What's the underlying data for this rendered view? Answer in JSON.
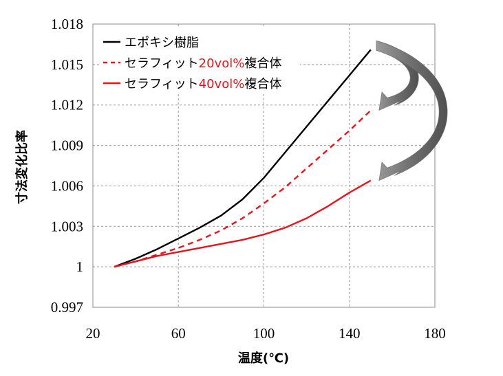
{
  "chart_data": {
    "type": "line",
    "xlabel": "温度(℃)",
    "ylabel": "寸法変化比率",
    "xlim": [
      20,
      180
    ],
    "ylim": [
      0.997,
      1.018
    ],
    "x_ticks": [
      20,
      60,
      100,
      140,
      180
    ],
    "x_tick_labels": [
      "20",
      "60",
      "100",
      "140",
      "180"
    ],
    "y_ticks": [
      0.997,
      1.0,
      1.003,
      1.006,
      1.009,
      1.012,
      1.015,
      1.018
    ],
    "y_tick_labels": [
      "0.997",
      "1",
      "1.003",
      "1.006",
      "1.009",
      "1.012",
      "1.015",
      "1.018"
    ],
    "grid": true,
    "legend_position": "top-left",
    "series": [
      {
        "name": "エポキシ樹脂",
        "name_parts": [
          "エポキシ樹脂"
        ],
        "color": "#000000",
        "dash": "solid",
        "x": [
          30,
          40,
          50,
          60,
          70,
          80,
          90,
          100,
          110,
          120,
          130,
          140,
          150
        ],
        "y": [
          1.0,
          1.0006,
          1.0013,
          1.0021,
          1.0029,
          1.0038,
          1.005,
          1.0066,
          1.0085,
          1.0104,
          1.0123,
          1.0142,
          1.0161
        ]
      },
      {
        "name": "セラフィット20vol%複合体",
        "name_parts": [
          "セラフィット",
          "20vol%",
          "複合体"
        ],
        "color": "#e8141c",
        "dash": "dashed",
        "x": [
          30,
          40,
          50,
          60,
          70,
          80,
          90,
          100,
          110,
          120,
          130,
          140,
          150
        ],
        "y": [
          1.0,
          1.0004,
          1.0009,
          1.0014,
          1.002,
          1.0027,
          1.0036,
          1.0047,
          1.0059,
          1.0073,
          1.0087,
          1.0101,
          1.0116
        ]
      },
      {
        "name": "セラフィット40vol%複合体",
        "name_parts": [
          "セラフィット",
          "40vol%",
          "複合体"
        ],
        "color": "#e8141c",
        "dash": "solid",
        "x": [
          30,
          40,
          50,
          60,
          70,
          80,
          90,
          100,
          110,
          120,
          130,
          140,
          150
        ],
        "y": [
          1.0,
          1.0004,
          1.0008,
          1.0011,
          1.0014,
          1.0017,
          1.002,
          1.0024,
          1.0029,
          1.0036,
          1.0045,
          1.0055,
          1.0064
        ]
      }
    ],
    "annotations": [
      {
        "type": "curved-arrow",
        "color": "#707070",
        "from": {
          "x": 150,
          "y": 1.0161
        },
        "to": {
          "x": 150,
          "y": 1.0116
        }
      },
      {
        "type": "curved-arrow",
        "color": "#707070",
        "from": {
          "x": 150,
          "y": 1.0161
        },
        "to": {
          "x": 150,
          "y": 1.0064
        }
      }
    ]
  }
}
